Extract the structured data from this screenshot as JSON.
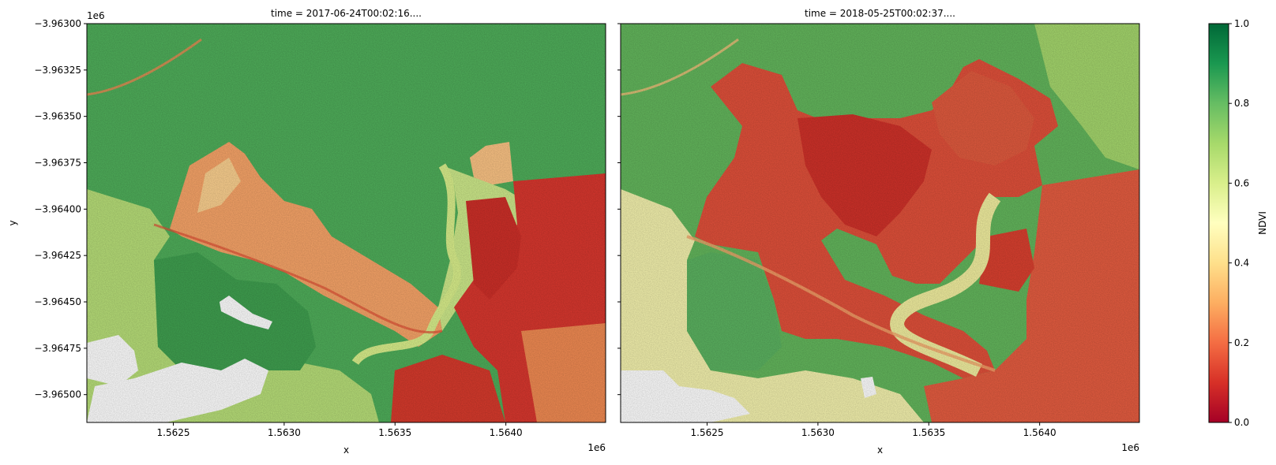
{
  "chart_data": {
    "type": "heatmap",
    "colormap": "RdYlGn",
    "colormap_stops": [
      "#a50026",
      "#d73027",
      "#f46d43",
      "#fdae61",
      "#fee08b",
      "#ffffbf",
      "#d9ef8b",
      "#a6d96a",
      "#66bd63",
      "#1a9850",
      "#006837"
    ],
    "missing_color": "#ffffff",
    "panels": [
      {
        "title": "time = 2017-06-24T00:02:16....",
        "xlabel": "x",
        "ylabel": "y",
        "show_y_ticks": true
      },
      {
        "title": "time = 2018-05-25T00:02:37....",
        "xlabel": "x",
        "ylabel": "",
        "show_y_ticks": false
      }
    ],
    "xlim": [
      1562110,
      1564450
    ],
    "ylim": [
      -3965150,
      -3963000
    ],
    "x_ticks": [
      1562500,
      1563000,
      1563500,
      1564000
    ],
    "x_tick_labels": [
      "1.5625",
      "1.5630",
      "1.5635",
      "1.5640"
    ],
    "x_offset_label": "1e6",
    "y_ticks": [
      -3963000,
      -3963250,
      -3963500,
      -3963750,
      -3964000,
      -3964250,
      -3964500,
      -3964750,
      -3965000
    ],
    "y_tick_labels": [
      "−3.96300",
      "−3.96325",
      "−3.96350",
      "−3.96375",
      "−3.96400",
      "−3.96425",
      "−3.96450",
      "−3.96475",
      "−3.96500"
    ],
    "y_offset_label": "1e6",
    "colorbar": {
      "label": "NDVI",
      "range": [
        0.0,
        1.0
      ],
      "ticks": [
        0.0,
        0.2,
        0.4,
        0.6,
        0.8,
        1.0
      ],
      "tick_labels": [
        "0.0",
        "0.2",
        "0.4",
        "0.6",
        "0.8",
        "1.0"
      ]
    }
  }
}
